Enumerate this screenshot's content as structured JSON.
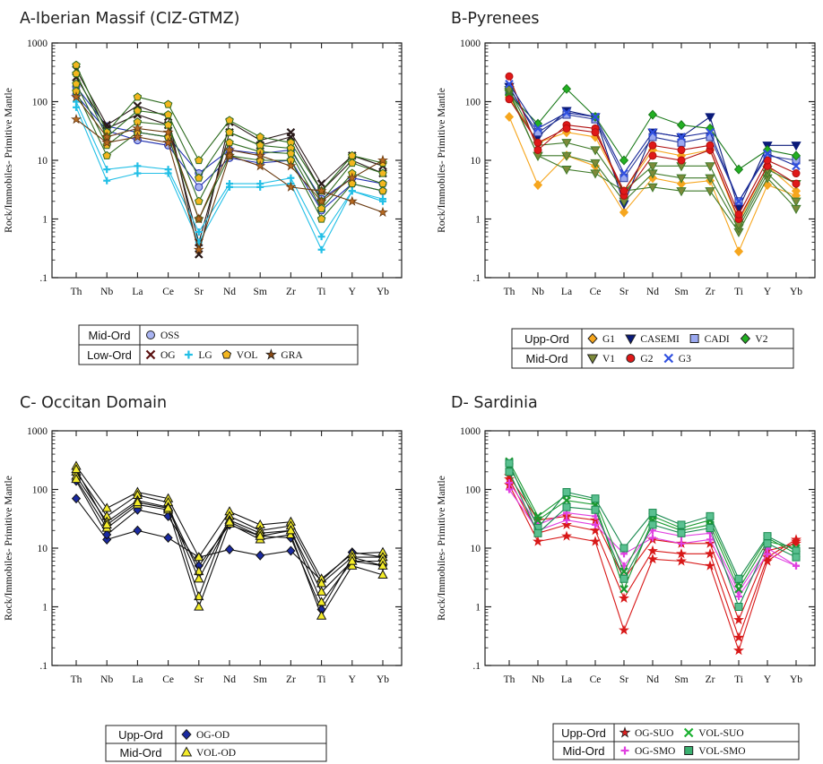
{
  "chart_data": [
    {
      "type": "line",
      "title": "A-Iberian Massif (CIZ-GTMZ)",
      "ylabel": "Rock/Immobiles- Primitive Mantle",
      "yscale": "log",
      "ylim": [
        0.1,
        1000
      ],
      "yticks": [
        "1000",
        "100",
        "10",
        "1",
        ".1"
      ],
      "categories": [
        "Th",
        "Nb",
        "La",
        "Ce",
        "Sr",
        "Nd",
        "Sm",
        "Zr",
        "Ti",
        "Y",
        "Yb"
      ],
      "legend": [
        {
          "group": "Mid-Ord",
          "items": [
            {
              "name": "OSS",
              "color": "#a9b4f2",
              "marker": "circle"
            }
          ]
        },
        {
          "group": "Low-Ord",
          "items": [
            {
              "name": "OG",
              "color": "#5a1010",
              "marker": "x"
            },
            {
              "name": "LG",
              "color": "#22bfe6",
              "marker": "plus"
            },
            {
              "name": "VOL",
              "color": "#f3b61f",
              "marker": "pentagon"
            },
            {
              "name": "GRA",
              "color": "#8a4a14",
              "marker": "star"
            }
          ]
        }
      ],
      "series": [
        {
          "name": "OSS",
          "color": "#2030b0",
          "marker": "circle",
          "fill": "#a9b4f2",
          "values": [
            180,
            38,
            30,
            25,
            6,
            15,
            13,
            15,
            2.2,
            5,
            4
          ]
        },
        {
          "name": "OSS",
          "color": "#2030b0",
          "marker": "circle",
          "fill": "#a9b4f2",
          "values": [
            130,
            32,
            22,
            18,
            3.5,
            11,
            9,
            10,
            1.4,
            4,
            3
          ]
        },
        {
          "name": "OG",
          "color": "#2a1a1a",
          "marker": "x",
          "values": [
            350,
            40,
            85,
            55,
            0.25,
            45,
            22,
            30,
            4,
            12,
            8
          ]
        },
        {
          "name": "OG",
          "color": "#2a1a1a",
          "marker": "x",
          "values": [
            260,
            35,
            60,
            40,
            0.4,
            30,
            18,
            25,
            3,
            10,
            6
          ]
        },
        {
          "name": "LG",
          "color": "#22bfe6",
          "marker": "plus",
          "values": [
            80,
            4.5,
            6,
            6,
            0.4,
            3.5,
            3.5,
            4,
            0.3,
            3,
            2
          ]
        },
        {
          "name": "LG",
          "color": "#22bfe6",
          "marker": "plus",
          "values": [
            100,
            7,
            8,
            7,
            0.6,
            4,
            4,
            5,
            0.5,
            3,
            2.2
          ]
        },
        {
          "name": "VOL",
          "color": "#2d6b1f",
          "marker": "pentagon",
          "fill": "#f3b61f",
          "values": [
            420,
            30,
            120,
            90,
            10,
            48,
            25,
            20,
            3,
            12,
            9
          ]
        },
        {
          "name": "VOL",
          "color": "#2d6b1f",
          "marker": "pentagon",
          "fill": "#f3b61f",
          "values": [
            300,
            25,
            70,
            60,
            5,
            30,
            18,
            16,
            2,
            9,
            6
          ]
        },
        {
          "name": "VOL",
          "color": "#2d6b1f",
          "marker": "pentagon",
          "fill": "#f3b61f",
          "values": [
            200,
            18,
            45,
            40,
            2,
            20,
            14,
            13,
            1.5,
            6,
            4
          ]
        },
        {
          "name": "VOL",
          "color": "#2d6b1f",
          "marker": "pentagon",
          "fill": "#f3b61f",
          "values": [
            150,
            12,
            30,
            25,
            1,
            12,
            10,
            10,
            1,
            4,
            3
          ]
        },
        {
          "name": "GRA",
          "color": "#6a3a10",
          "marker": "star",
          "fill": "#b86a20",
          "values": [
            50,
            20,
            25,
            20,
            0.3,
            12,
            8,
            3.5,
            3,
            2,
            1.3
          ]
        },
        {
          "name": "GRA",
          "color": "#6a3a10",
          "marker": "star",
          "fill": "#b86a20",
          "values": [
            120,
            25,
            35,
            30,
            1,
            15,
            12,
            8,
            2,
            5,
            10
          ]
        }
      ]
    },
    {
      "type": "line",
      "title": "B-Pyrenees",
      "ylabel": "Rock/Immobiles- Primitive Mantle",
      "yscale": "log",
      "ylim": [
        0.1,
        1000
      ],
      "yticks": [
        "1000",
        "100",
        "10",
        "1",
        ".1"
      ],
      "categories": [
        "Th",
        "Nb",
        "La",
        "Ce",
        "Sr",
        "Nd",
        "Sm",
        "Zr",
        "Ti",
        "Y",
        "Yb"
      ],
      "legend": [
        {
          "group": "Upp-Ord",
          "items": [
            {
              "name": "G1",
              "color": "#f6a61e",
              "marker": "diamond"
            },
            {
              "name": "CASEMI",
              "color": "#0a1a7a",
              "marker": "tridown"
            },
            {
              "name": "CADI",
              "color": "#9aa8f0",
              "marker": "square"
            },
            {
              "name": "V2",
              "color": "#22b022",
              "marker": "diamond"
            }
          ]
        },
        {
          "group": "Mid-Ord",
          "items": [
            {
              "name": "V1",
              "color": "#7d8a3a",
              "marker": "tridown"
            },
            {
              "name": "G2",
              "color": "#e01818",
              "marker": "circle"
            },
            {
              "name": "G3",
              "color": "#3050e0",
              "marker": "x"
            }
          ]
        }
      ],
      "series": [
        {
          "name": "G1",
          "color": "#f6a61e",
          "marker": "diamond",
          "values": [
            55,
            3.8,
            12,
            8,
            1.3,
            5,
            4,
            4.5,
            0.28,
            3.8,
            2.5
          ]
        },
        {
          "name": "G1",
          "color": "#f6a61e",
          "marker": "diamond",
          "values": [
            120,
            20,
            30,
            25,
            3,
            15,
            12,
            15,
            0.9,
            8,
            3
          ]
        },
        {
          "name": "CASEMI",
          "color": "#0a1a7a",
          "marker": "tridown",
          "values": [
            180,
            25,
            70,
            55,
            1.8,
            30,
            25,
            55,
            1.5,
            18,
            18
          ]
        },
        {
          "name": "CADI",
          "color": "#2a3a9a",
          "marker": "square",
          "fill": "#9aa8f0",
          "values": [
            150,
            30,
            60,
            50,
            5,
            25,
            20,
            25,
            2,
            12,
            10
          ]
        },
        {
          "name": "V2",
          "color": "#1a7a1a",
          "marker": "diamond",
          "fill": "#22b022",
          "values": [
            130,
            42,
            165,
            55,
            10,
            60,
            40,
            35,
            7,
            15,
            12
          ]
        },
        {
          "name": "V1",
          "color": "#3f7a2a",
          "marker": "tridown",
          "fill": "#7d8a3a",
          "values": [
            140,
            12,
            7,
            6,
            3,
            3.5,
            3,
            3,
            0.6,
            5,
            1.5
          ]
        },
        {
          "name": "V1",
          "color": "#3f7a2a",
          "marker": "tridown",
          "fill": "#7d8a3a",
          "values": [
            150,
            12,
            12,
            9,
            2,
            6,
            5,
            5,
            0.7,
            6,
            2
          ]
        },
        {
          "name": "V1",
          "color": "#3f7a2a",
          "marker": "tridown",
          "fill": "#7d8a3a",
          "values": [
            160,
            18,
            20,
            15,
            3,
            8,
            8,
            8,
            0.8,
            7,
            4
          ]
        },
        {
          "name": "G2",
          "color": "#b01010",
          "marker": "circle",
          "fill": "#e01818",
          "values": [
            270,
            15,
            40,
            35,
            2.5,
            12,
            10,
            15,
            1,
            8,
            4
          ]
        },
        {
          "name": "G2",
          "color": "#b01010",
          "marker": "circle",
          "fill": "#e01818",
          "values": [
            110,
            20,
            35,
            30,
            3,
            18,
            15,
            18,
            1.2,
            10,
            6
          ]
        },
        {
          "name": "G3",
          "color": "#1a2a9a",
          "marker": "x",
          "fill": "#3050e0",
          "values": [
            200,
            35,
            65,
            55,
            6,
            30,
            25,
            30,
            2,
            13,
            8
          ]
        }
      ]
    },
    {
      "type": "line",
      "title": "C- Occitan Domain",
      "ylabel": "Rock/Immobiles- Primitive Mantle",
      "yscale": "log",
      "ylim": [
        0.1,
        1000
      ],
      "yticks": [
        "1000",
        "100",
        "10",
        "1",
        ".1"
      ],
      "categories": [
        "Th",
        "Nb",
        "La",
        "Ce",
        "Sr",
        "Nd",
        "Sm",
        "Zr",
        "Ti",
        "Y",
        "Yb"
      ],
      "legend": [
        {
          "group": "Upp-Ord",
          "items": [
            {
              "name": "OG-OD",
              "color": "#1a2aa0",
              "marker": "diamond"
            }
          ]
        },
        {
          "group": "Mid-Ord",
          "items": [
            {
              "name": "VOL-OD",
              "color": "#f4ec2a",
              "marker": "triangle"
            }
          ]
        }
      ],
      "series": [
        {
          "name": "OG-OD",
          "color": "#111111",
          "marker": "diamond",
          "fill": "#1a2aa0",
          "values": [
            70,
            14,
            20,
            15,
            7,
            9.5,
            7.5,
            9,
            2.8,
            8.5,
            7
          ]
        },
        {
          "name": "OG-OD",
          "color": "#111111",
          "marker": "diamond",
          "fill": "#1a2aa0",
          "values": [
            140,
            17,
            45,
            35,
            5,
            25,
            16,
            15,
            0.9,
            7,
            5
          ]
        },
        {
          "name": "VOL-OD",
          "color": "#111111",
          "marker": "triangle",
          "fill": "#f4ec2a",
          "values": [
            250,
            48,
            90,
            70,
            7,
            42,
            25,
            28,
            3,
            8,
            8.5
          ]
        },
        {
          "name": "VOL-OD",
          "color": "#111111",
          "marker": "triangle",
          "fill": "#f4ec2a",
          "values": [
            200,
            35,
            80,
            60,
            1.5,
            35,
            20,
            24,
            2.5,
            7,
            7
          ]
        },
        {
          "name": "VOL-OD",
          "color": "#111111",
          "marker": "triangle",
          "fill": "#f4ec2a",
          "values": [
            170,
            28,
            65,
            50,
            4,
            30,
            18,
            20,
            1.8,
            6,
            6
          ]
        },
        {
          "name": "VOL-OD",
          "color": "#111111",
          "marker": "triangle",
          "fill": "#f4ec2a",
          "values": [
            150,
            22,
            55,
            45,
            1,
            26,
            14,
            17,
            0.7,
            5,
            3.5
          ]
        },
        {
          "name": "VOL-OD",
          "color": "#111111",
          "marker": "triangle",
          "fill": "#f4ec2a",
          "values": [
            220,
            25,
            60,
            48,
            3,
            28,
            16,
            20,
            1.2,
            6,
            5
          ]
        }
      ]
    },
    {
      "type": "line",
      "title": "D- Sardinia",
      "ylabel": "Rock/Immobiles- Primitive Mantle",
      "yscale": "log",
      "ylim": [
        0.1,
        1000
      ],
      "yticks": [
        "1000",
        "100",
        "10",
        "1",
        ".1"
      ],
      "categories": [
        "Th",
        "Nb",
        "La",
        "Ce",
        "Sr",
        "Nd",
        "Sm",
        "Zr",
        "Ti",
        "Y",
        "Yb"
      ],
      "legend": [
        {
          "group": "Upp-Ord",
          "items": [
            {
              "name": "OG-SUO",
              "color": "#e02020",
              "marker": "star"
            },
            {
              "name": "VOL-SUO",
              "color": "#1ab030",
              "marker": "x"
            }
          ]
        },
        {
          "group": "Mid-Ord",
          "items": [
            {
              "name": "OG-SMO",
              "color": "#e040e0",
              "marker": "plus"
            },
            {
              "name": "VOL-SMO",
              "color": "#3ab070",
              "marker": "square"
            }
          ]
        }
      ],
      "series": [
        {
          "name": "OG-SUO",
          "color": "#d81818",
          "marker": "star",
          "values": [
            120,
            13,
            16,
            13,
            0.4,
            6.5,
            6,
            5,
            0.18,
            6,
            13
          ]
        },
        {
          "name": "OG-SUO",
          "color": "#d81818",
          "marker": "star",
          "values": [
            150,
            18,
            25,
            20,
            1.4,
            9,
            8,
            8,
            0.3,
            7,
            14
          ]
        },
        {
          "name": "OG-SUO",
          "color": "#d81818",
          "marker": "star",
          "values": [
            170,
            30,
            35,
            30,
            3,
            14,
            12,
            12,
            0.6,
            9,
            12
          ]
        },
        {
          "name": "OG-SMO",
          "color": "#e040e0",
          "marker": "plus",
          "values": [
            100,
            20,
            30,
            25,
            8,
            15,
            12,
            14,
            1.5,
            8,
            5
          ]
        },
        {
          "name": "OG-SMO",
          "color": "#e040e0",
          "marker": "plus",
          "values": [
            130,
            25,
            40,
            35,
            5,
            20,
            16,
            18,
            1.8,
            10,
            5
          ]
        },
        {
          "name": "VOL-SUO",
          "color": "#1a9a30",
          "marker": "x",
          "values": [
            300,
            35,
            80,
            65,
            4,
            35,
            22,
            30,
            2.5,
            15,
            8
          ]
        },
        {
          "name": "VOL-SUO",
          "color": "#1a9a30",
          "marker": "x",
          "values": [
            250,
            30,
            65,
            55,
            2,
            30,
            20,
            25,
            2,
            13,
            10
          ]
        },
        {
          "name": "VOL-SMO",
          "color": "#1a8a50",
          "marker": "square",
          "fill": "#5ac090",
          "values": [
            280,
            22,
            90,
            70,
            10,
            40,
            25,
            35,
            3,
            16,
            9
          ]
        },
        {
          "name": "VOL-SMO",
          "color": "#1a8a50",
          "marker": "square",
          "fill": "#5ac090",
          "values": [
            200,
            18,
            50,
            45,
            3,
            25,
            18,
            22,
            1,
            12,
            7
          ]
        }
      ]
    }
  ]
}
